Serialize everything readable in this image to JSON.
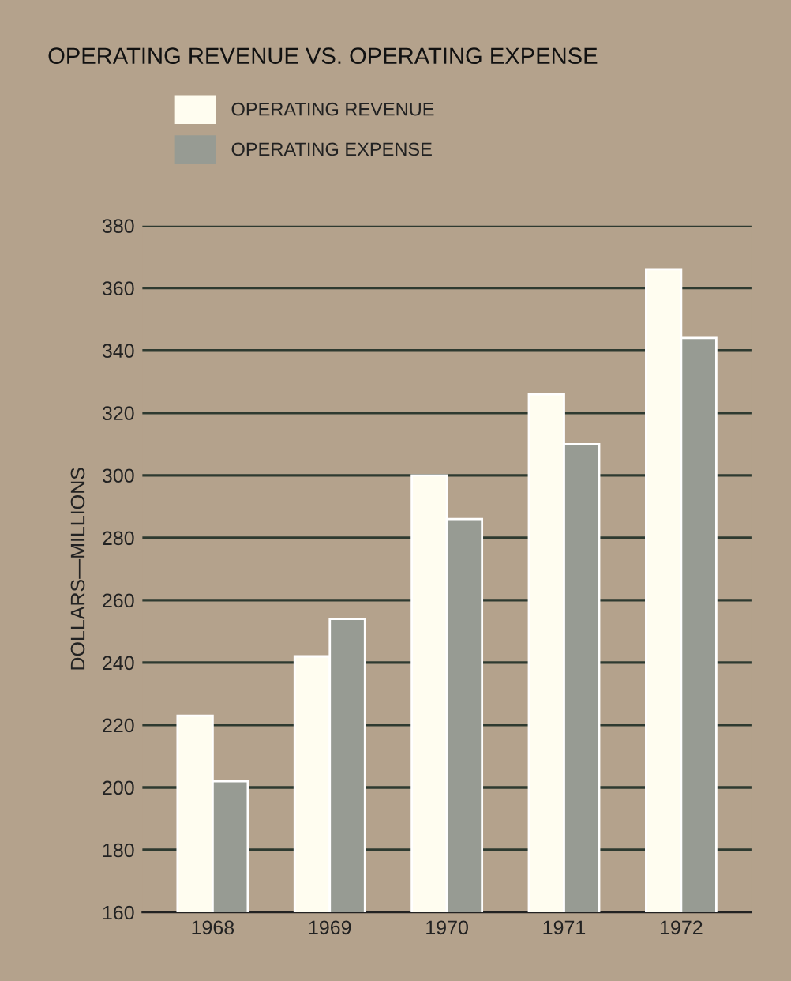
{
  "chart_data": {
    "type": "bar",
    "title": "OPERATING REVENUE VS. OPERATING EXPENSE",
    "ylabel": "DOLLARS—MILLIONS",
    "categories": [
      "1968",
      "1969",
      "1970",
      "1971",
      "1972"
    ],
    "series": [
      {
        "name": "OPERATING REVENUE",
        "color": "#fffdf0",
        "values": [
          223,
          242,
          300,
          326,
          366
        ]
      },
      {
        "name": "OPERATING EXPENSE",
        "color": "#979b93",
        "values": [
          202,
          254,
          286,
          310,
          344
        ]
      }
    ],
    "ylim": [
      160,
      380
    ],
    "yticks": [
      160,
      180,
      200,
      220,
      240,
      260,
      280,
      300,
      320,
      340,
      360,
      380
    ],
    "grid": "y",
    "legend": "top left"
  }
}
